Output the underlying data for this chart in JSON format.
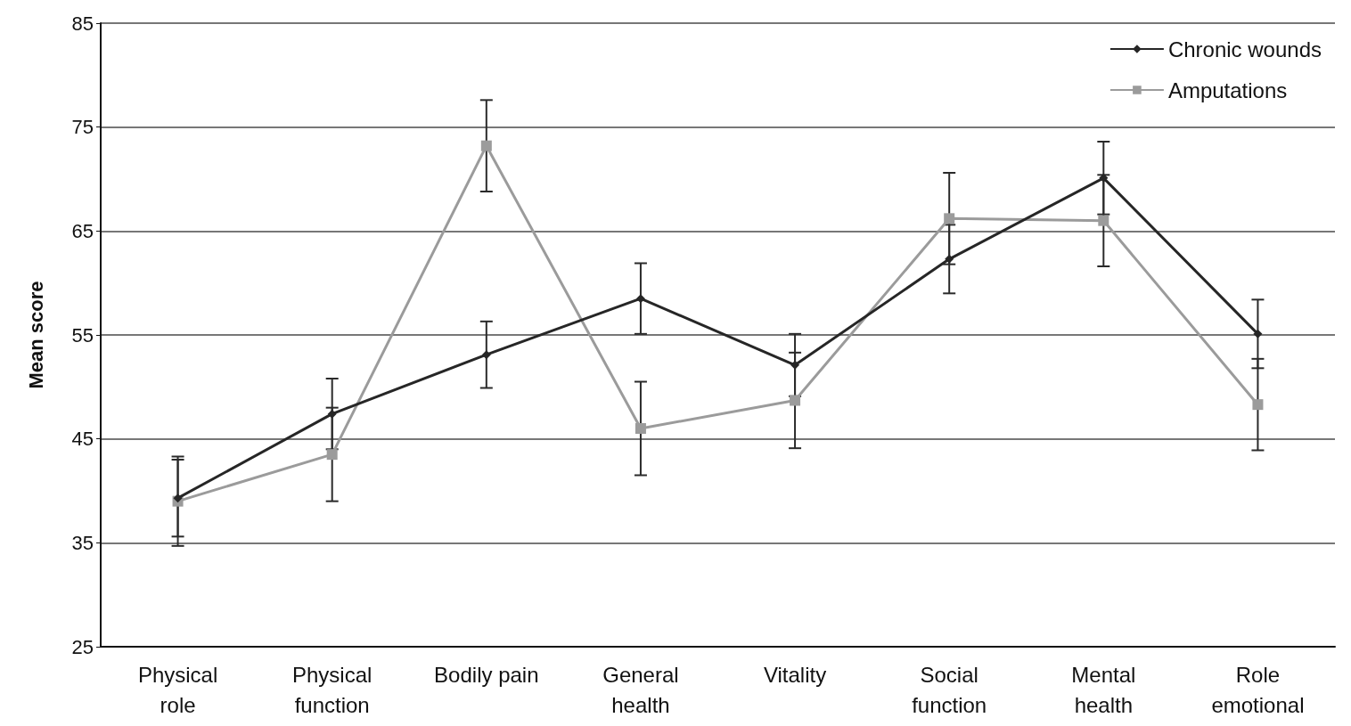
{
  "chart_data": {
    "type": "line",
    "ylabel": "Mean score",
    "categories": [
      "Physical\nrole",
      "Physical\nfunction",
      "Bodily pain",
      "General\nhealth",
      "Vitality",
      "Social\nfunction",
      "Mental\nhealth",
      "Role\nemotional"
    ],
    "series": [
      {
        "name": "Chronic wounds",
        "color": "#262626",
        "marker": "diamond",
        "values": [
          39.3,
          47.4,
          53.1,
          58.5,
          52.1,
          62.3,
          70.1,
          55.1
        ],
        "errors": [
          3.7,
          3.4,
          3.2,
          3.4,
          3.0,
          3.3,
          3.5,
          3.3
        ]
      },
      {
        "name": "Amputations",
        "color": "#9b9b9b",
        "marker": "square",
        "values": [
          39.0,
          43.5,
          73.2,
          46.0,
          48.7,
          66.2,
          66.0,
          48.3
        ],
        "errors": [
          4.3,
          4.5,
          4.4,
          4.5,
          4.6,
          4.4,
          4.4,
          4.4
        ]
      }
    ],
    "ylim": [
      25,
      85
    ],
    "yticks": [
      25,
      35,
      45,
      55,
      65,
      75,
      85
    ],
    "grid": "y",
    "legend": "top right",
    "line_style": "solid"
  }
}
